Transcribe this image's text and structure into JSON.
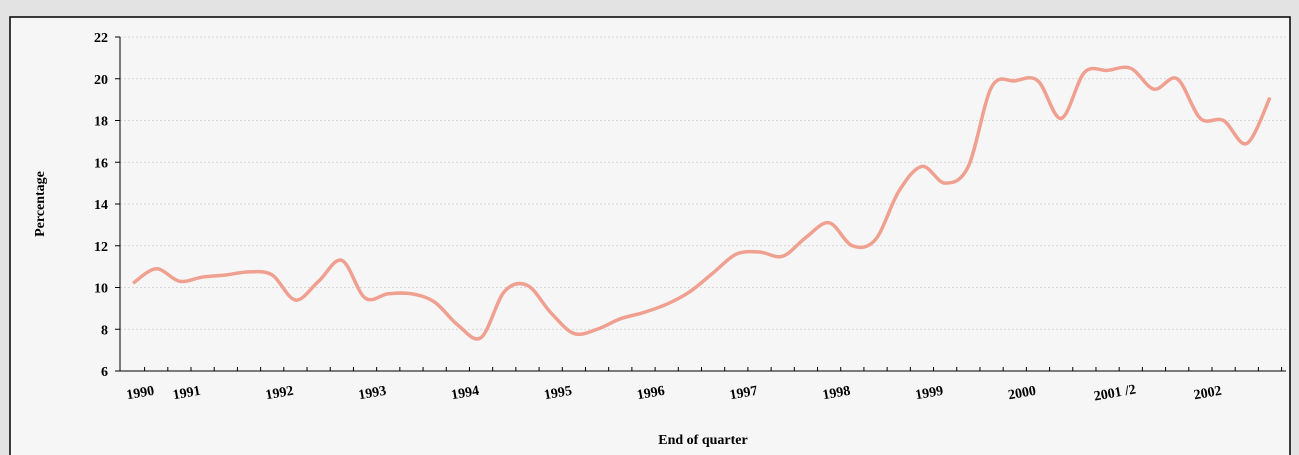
{
  "chart_data": {
    "type": "line",
    "x_label": "End of quarter",
    "y_label": "Percentage",
    "categories": [
      "1990",
      null,
      "1991",
      null,
      null,
      null,
      "1992",
      null,
      null,
      null,
      "1993",
      null,
      null,
      null,
      "1994",
      null,
      null,
      null,
      "1995",
      null,
      null,
      null,
      "1996",
      null,
      null,
      null,
      "1997",
      null,
      null,
      null,
      "1998",
      null,
      null,
      null,
      "1999",
      null,
      null,
      null,
      "2000",
      null,
      null,
      null,
      "2001 /2",
      null,
      null,
      null,
      "2002",
      null,
      null,
      null
    ],
    "series": [
      {
        "color": "#f0a090",
        "values": [
          10.2,
          10.9,
          10.3,
          10.5,
          10.6,
          10.75,
          10.6,
          9.4,
          10.3,
          11.3,
          9.5,
          9.7,
          9.7,
          9.3,
          8.2,
          7.6,
          9.8,
          10.1,
          8.8,
          7.8,
          8.0,
          8.5,
          8.8,
          9.2,
          9.8,
          10.7,
          11.6,
          11.7,
          11.5,
          12.4,
          13.1,
          12.0,
          12.3,
          14.6,
          15.8,
          15.0,
          15.8,
          19.6,
          19.9,
          19.9,
          18.1,
          20.3,
          20.4,
          20.5,
          19.5,
          20.0,
          18.1,
          18.0,
          16.9,
          19.1
        ]
      }
    ],
    "ylim": [
      6,
      22
    ],
    "yticks": [
      6,
      8,
      10,
      12,
      14,
      16,
      18,
      20,
      22
    ],
    "grid": true
  }
}
